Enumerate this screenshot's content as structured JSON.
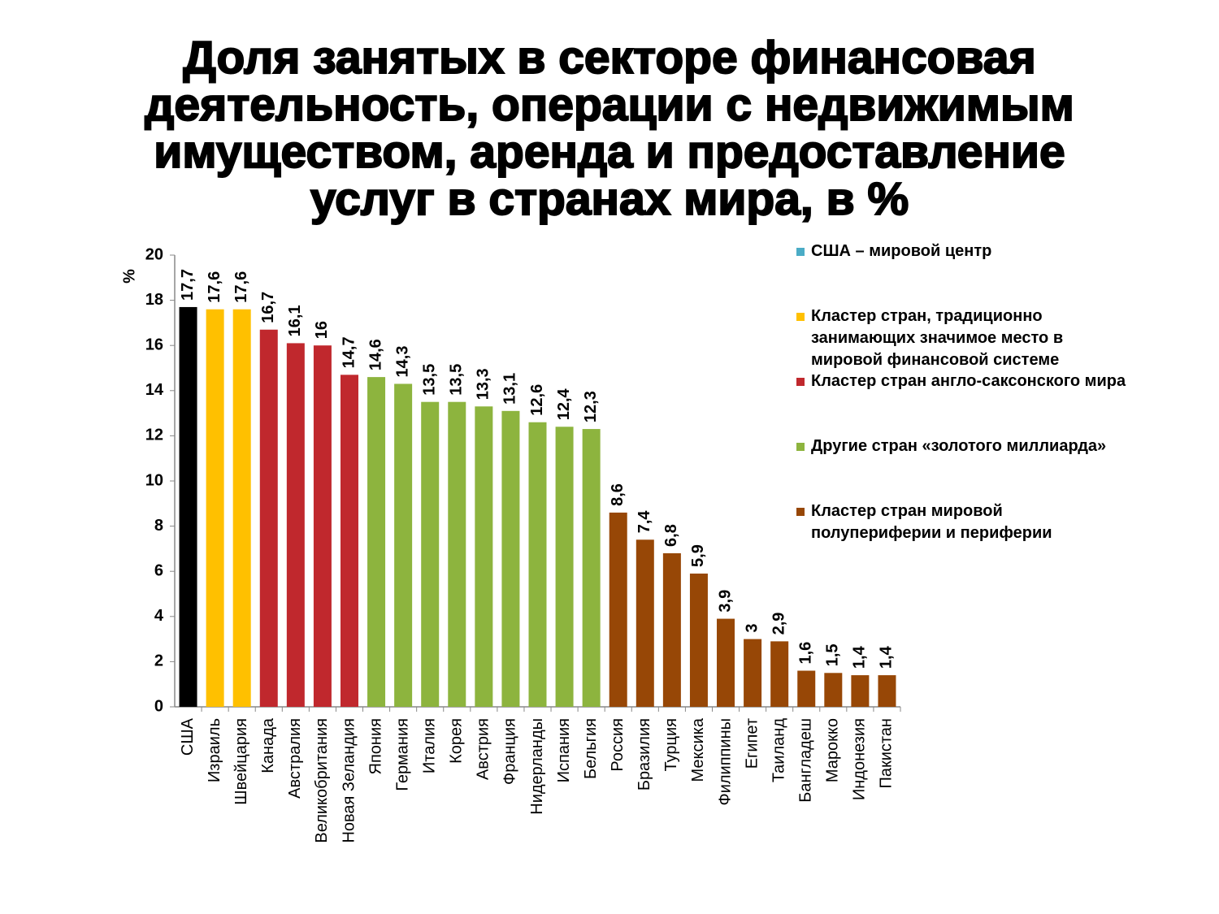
{
  "chart_data": {
    "type": "bar",
    "title": "Доля занятых в секторе финансовая\nдеятельность, операции с недвижимым\nимуществом, аренда и предоставление\nуслуг в странах мира, в %",
    "y_label": "%",
    "categories": [
      "США",
      "Израиль",
      "Швейцария",
      "Канада",
      "Австралия",
      "Великобритания",
      "Новая Зеландия",
      "Япония",
      "Германия",
      "Италия",
      "Корея",
      "Австрия",
      "Франция",
      "Нидерланды",
      "Испания",
      "Бельгия",
      "Россия",
      "Бразилия",
      "Турция",
      "Мексика",
      "Филиппины",
      "Египет",
      "Таиланд",
      "Бангладеш",
      "Марокко",
      "Индонезия",
      "Пакистан"
    ],
    "values": [
      17.7,
      17.6,
      17.6,
      16.7,
      16.1,
      16,
      14.7,
      14.6,
      14.3,
      13.5,
      13.5,
      13.3,
      13.1,
      12.6,
      12.4,
      12.3,
      8.6,
      7.4,
      6.8,
      5.9,
      3.9,
      3,
      2.9,
      1.6,
      1.5,
      1.4,
      1.4
    ],
    "value_labels": [
      "17,7",
      "17,6",
      "17,6",
      "16,7",
      "16,1",
      "16",
      "14,7",
      "14,6",
      "14,3",
      "13,5",
      "13,5",
      "13,3",
      "13,1",
      "12,6",
      "12,4",
      "12,3",
      "8,6",
      "7,4",
      "6,8",
      "5,9",
      "3,9",
      "3",
      "2,9",
      "1,6",
      "1,5",
      "1,4",
      "1,4"
    ],
    "colors": [
      "#000000",
      "#ffc000",
      "#ffc000",
      "#c0282d",
      "#c0282d",
      "#c0282d",
      "#c0282d",
      "#8db43e",
      "#8db43e",
      "#8db43e",
      "#8db43e",
      "#8db43e",
      "#8db43e",
      "#8db43e",
      "#8db43e",
      "#8db43e",
      "#974706",
      "#974706",
      "#974706",
      "#974706",
      "#974706",
      "#974706",
      "#974706",
      "#974706",
      "#974706",
      "#974706",
      "#974706"
    ],
    "legend": [
      {
        "name": "США – мировой центр",
        "color": "#4bacc6"
      },
      {
        "name": "Кластер стран, традиционно занимающих значимое место в мировой финансовой системе",
        "color": "#ffc000"
      },
      {
        "name": "Кластер стран англо-саксонского мира",
        "color": "#c0282d"
      },
      {
        "name": "Другие стран «золотого миллиарда»",
        "color": "#8db43e"
      },
      {
        "name": "Кластер стран мировой полупериферии и периферии",
        "color": "#974706"
      }
    ],
    "ylim": [
      0,
      20
    ],
    "yticks": [
      0,
      2,
      4,
      6,
      8,
      10,
      12,
      14,
      16,
      18,
      20
    ]
  }
}
